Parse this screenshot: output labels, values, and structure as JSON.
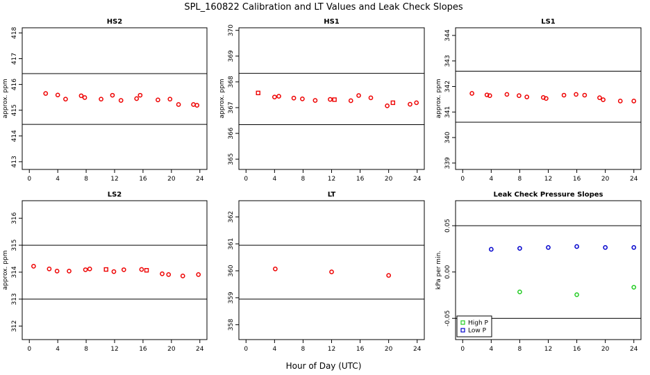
{
  "figure": {
    "title": "SPL_160822  Calibration and LT Values and Leak Check Slopes",
    "xlabel": "Hour of Day (UTC)"
  },
  "chart_data": [
    {
      "type": "scatter",
      "title": "HS2",
      "ylabel": "approx. ppm",
      "xlim": [
        -1,
        25
      ],
      "ylim": [
        412.7,
        418.2
      ],
      "xticks": [
        0,
        4,
        8,
        12,
        16,
        20,
        24
      ],
      "yticks": [
        413,
        414,
        415,
        416,
        417,
        418
      ],
      "hlines": [
        416.42,
        414.45
      ],
      "grid": false,
      "series": [
        {
          "marker": "circle",
          "color": "#ee0000",
          "x": [
            2.3,
            4.0,
            5.1,
            7.3,
            7.8,
            10.1,
            11.7,
            12.9,
            15.1,
            15.6,
            18.1,
            19.8,
            21.0,
            23.1,
            23.6
          ],
          "y": [
            415.65,
            415.59,
            415.43,
            415.56,
            415.49,
            415.43,
            415.58,
            415.38,
            415.45,
            415.58,
            415.4,
            415.43,
            415.22,
            415.22,
            415.19
          ]
        },
        {
          "marker": "square",
          "color": "#ee0000",
          "x": [],
          "y": []
        }
      ]
    },
    {
      "type": "scatter",
      "title": "HS1",
      "ylabel": "approx. ppm",
      "xlim": [
        -1,
        25
      ],
      "ylim": [
        364.6,
        370.1
      ],
      "xticks": [
        0,
        4,
        8,
        12,
        16,
        20,
        24
      ],
      "yticks": [
        365,
        366,
        367,
        368,
        369,
        370
      ],
      "hlines": [
        368.33,
        366.34
      ],
      "grid": false,
      "series": [
        {
          "marker": "circle",
          "color": "#ee0000",
          "x": [
            4.0,
            4.6,
            6.7,
            7.9,
            9.7,
            11.8,
            14.7,
            15.8,
            17.5,
            19.8,
            23.0,
            23.9
          ],
          "y": [
            367.41,
            367.44,
            367.37,
            367.34,
            367.28,
            367.32,
            367.27,
            367.47,
            367.38,
            367.07,
            367.13,
            367.19
          ]
        },
        {
          "marker": "square",
          "color": "#ee0000",
          "x": [
            1.7,
            12.4,
            20.6
          ],
          "y": [
            367.57,
            367.31,
            367.19
          ]
        }
      ]
    },
    {
      "type": "scatter",
      "title": "LS1",
      "ylabel": "approx. ppm",
      "xlim": [
        -1,
        25
      ],
      "ylim": [
        338.75,
        344.3
      ],
      "xticks": [
        0,
        4,
        8,
        12,
        16,
        20,
        24
      ],
      "yticks": [
        339,
        340,
        341,
        342,
        343,
        344
      ],
      "hlines": [
        342.6,
        340.6
      ],
      "grid": false,
      "series": [
        {
          "marker": "circle",
          "color": "#ee0000",
          "x": [
            1.3,
            3.4,
            3.8,
            6.2,
            7.9,
            9.0,
            11.3,
            11.7,
            14.2,
            15.9,
            17.1,
            19.2,
            19.7,
            22.1,
            24.0
          ],
          "y": [
            341.73,
            341.67,
            341.64,
            341.69,
            341.64,
            341.59,
            341.57,
            341.53,
            341.66,
            341.69,
            341.66,
            341.56,
            341.48,
            341.43,
            341.43
          ]
        },
        {
          "marker": "square",
          "color": "#ee0000",
          "x": [],
          "y": []
        }
      ]
    },
    {
      "type": "scatter",
      "title": "LS2",
      "ylabel": "approx. ppm",
      "xlim": [
        -1,
        25
      ],
      "ylim": [
        311.5,
        316.65
      ],
      "xticks": [
        0,
        4,
        8,
        12,
        16,
        20,
        24
      ],
      "yticks": [
        312,
        313,
        314,
        315,
        316
      ],
      "hlines": [
        315.0,
        313.0
      ],
      "grid": false,
      "series": [
        {
          "marker": "circle",
          "color": "#ee0000",
          "x": [
            0.6,
            2.8,
            3.9,
            5.6,
            7.9,
            8.5,
            11.9,
            13.3,
            15.8,
            18.7,
            19.6,
            21.6,
            23.8
          ],
          "y": [
            314.22,
            314.12,
            314.04,
            314.04,
            314.09,
            314.12,
            314.02,
            314.09,
            314.1,
            313.94,
            313.91,
            313.86,
            313.91
          ]
        },
        {
          "marker": "square",
          "color": "#ee0000",
          "x": [
            10.8,
            16.5
          ],
          "y": [
            314.1,
            314.07
          ]
        }
      ]
    },
    {
      "type": "scatter",
      "title": "LT",
      "ylabel": "",
      "xlim": [
        -1,
        25
      ],
      "ylim": [
        357.45,
        362.6
      ],
      "xticks": [
        0,
        4,
        8,
        12,
        16,
        20,
        24
      ],
      "yticks": [
        358,
        359,
        360,
        361,
        362
      ],
      "hlines": [
        360.95,
        358.95
      ],
      "grid": false,
      "series": [
        {
          "marker": "circle",
          "color": "#ee0000",
          "x": [
            4.1,
            12.0,
            20.0
          ],
          "y": [
            360.07,
            359.96,
            359.83
          ]
        }
      ]
    },
    {
      "type": "scatter",
      "title": "Leak Check Pressure Slopes",
      "ylabel": "kPa per min.",
      "xlim": [
        -1,
        25
      ],
      "ylim": [
        -0.073,
        0.077
      ],
      "xticks": [
        0,
        4,
        8,
        12,
        16,
        20,
        24
      ],
      "yticks": [
        -0.05,
        0.0,
        0.05
      ],
      "ytick_labels": [
        "-0.05",
        "0.00",
        "0.05"
      ],
      "hlines": [
        0.05,
        -0.05
      ],
      "grid": false,
      "legend": {
        "position": "bottom-left",
        "entries": [
          {
            "label": "High P",
            "color": "#22cc22"
          },
          {
            "label": "Low P",
            "color": "#0000cc"
          }
        ]
      },
      "series": [
        {
          "name": "High P",
          "marker": "circle",
          "color": "#22cc22",
          "x": [
            8.0,
            16.0,
            24.0
          ],
          "y": [
            -0.0215,
            -0.0245,
            -0.0165
          ]
        },
        {
          "name": "Low P",
          "marker": "circle",
          "color": "#0000cc",
          "x": [
            4.0,
            8.0,
            12.0,
            16.0,
            20.0,
            24.0
          ],
          "y": [
            0.0245,
            0.0255,
            0.0265,
            0.0275,
            0.0265,
            0.0265
          ]
        }
      ]
    }
  ]
}
